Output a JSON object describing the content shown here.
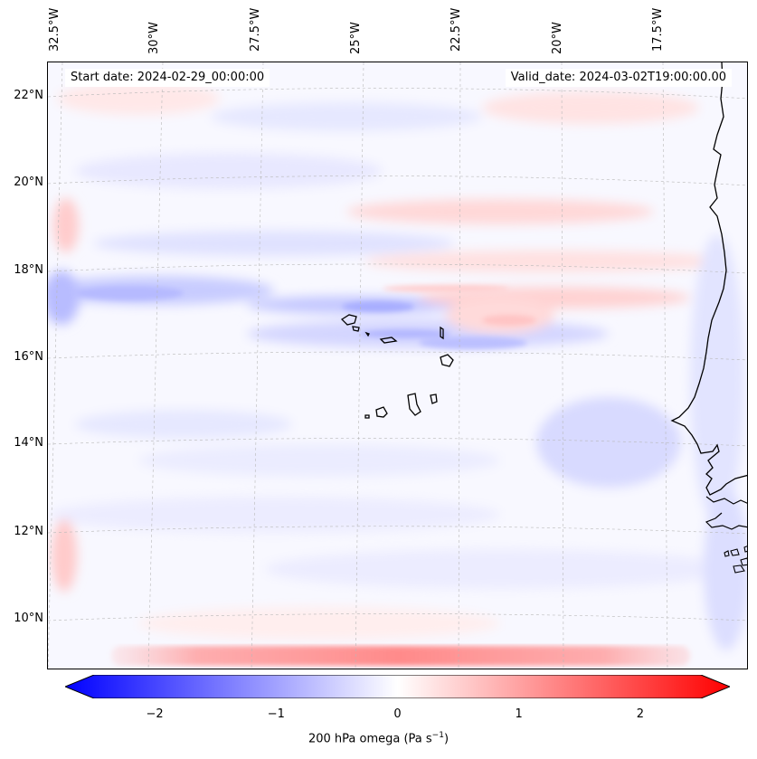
{
  "map": {
    "start_date": "Start date: 2024-02-29_00:00:00",
    "valid_date": "Valid_date: 2024-03-02T19:00:00.00",
    "longitude_labels": [
      "32.5°W",
      "30°W",
      "27.5°W",
      "25°W",
      "22.5°W",
      "20°W",
      "17.5°W"
    ],
    "latitude_labels": [
      "22°N",
      "20°N",
      "18°N",
      "16°N",
      "14°N",
      "12°N",
      "10°N"
    ]
  },
  "colorbar": {
    "ticks": [
      "−2",
      "−1",
      "0",
      "1",
      "2"
    ],
    "tick_values": [
      -2,
      -1,
      0,
      1,
      2
    ],
    "range": [
      -2.5,
      2.5
    ],
    "label_text": "200 hPa omega (Pa s",
    "label_exp": "−1",
    "label_close": ")",
    "colors": {
      "negative": "#0000ff",
      "zero": "#ffffff",
      "positive": "#ff0000"
    }
  }
}
